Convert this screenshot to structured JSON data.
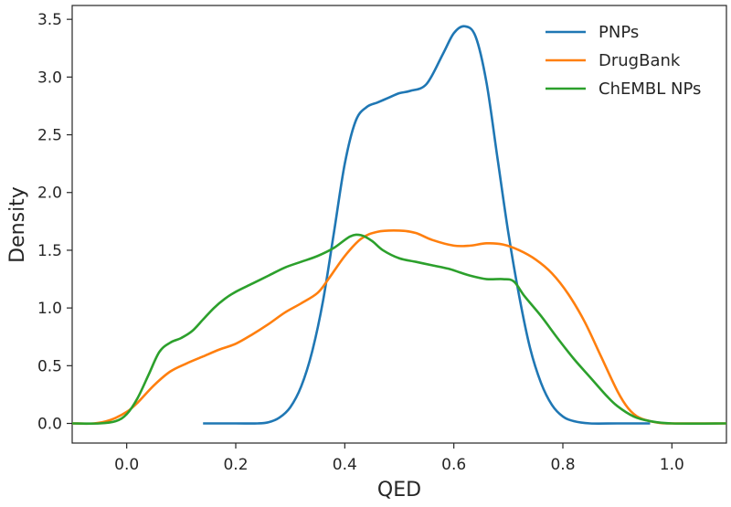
{
  "chart_data": {
    "type": "line",
    "xlabel": "QED",
    "ylabel": "Density",
    "xlim": [
      -0.1,
      1.1
    ],
    "ylim": [
      -0.17,
      3.62
    ],
    "xticks": [
      "0.0",
      "0.2",
      "0.4",
      "0.6",
      "0.8",
      "1.0"
    ],
    "xtick_values": [
      0.0,
      0.2,
      0.4,
      0.6,
      0.8,
      1.0
    ],
    "yticks": [
      "0.0",
      "0.5",
      "1.0",
      "1.5",
      "2.0",
      "2.5",
      "3.0",
      "3.5"
    ],
    "ytick_values": [
      0.0,
      0.5,
      1.0,
      1.5,
      2.0,
      2.5,
      3.0,
      3.5
    ],
    "grid": false,
    "legend_position": "top-right",
    "series": [
      {
        "name": "PNPs",
        "color": "#1f77b4",
        "points": [
          [
            0.14,
            0.0
          ],
          [
            0.2,
            0.0
          ],
          [
            0.24,
            0.0
          ],
          [
            0.26,
            0.01
          ],
          [
            0.28,
            0.05
          ],
          [
            0.3,
            0.14
          ],
          [
            0.32,
            0.32
          ],
          [
            0.34,
            0.62
          ],
          [
            0.36,
            1.06
          ],
          [
            0.38,
            1.65
          ],
          [
            0.4,
            2.25
          ],
          [
            0.42,
            2.62
          ],
          [
            0.44,
            2.74
          ],
          [
            0.46,
            2.78
          ],
          [
            0.48,
            2.82
          ],
          [
            0.5,
            2.86
          ],
          [
            0.52,
            2.88
          ],
          [
            0.55,
            2.94
          ],
          [
            0.58,
            3.2
          ],
          [
            0.6,
            3.38
          ],
          [
            0.62,
            3.44
          ],
          [
            0.64,
            3.35
          ],
          [
            0.66,
            2.95
          ],
          [
            0.68,
            2.3
          ],
          [
            0.7,
            1.65
          ],
          [
            0.72,
            1.1
          ],
          [
            0.74,
            0.65
          ],
          [
            0.76,
            0.35
          ],
          [
            0.78,
            0.16
          ],
          [
            0.8,
            0.06
          ],
          [
            0.82,
            0.02
          ],
          [
            0.85,
            0.0
          ],
          [
            0.9,
            0.0
          ],
          [
            0.96,
            0.0
          ]
        ]
      },
      {
        "name": "DrugBank",
        "color": "#ff7f0e",
        "points": [
          [
            -0.1,
            0.0
          ],
          [
            -0.06,
            0.0
          ],
          [
            -0.03,
            0.03
          ],
          [
            0.0,
            0.1
          ],
          [
            0.02,
            0.18
          ],
          [
            0.05,
            0.33
          ],
          [
            0.08,
            0.45
          ],
          [
            0.11,
            0.52
          ],
          [
            0.14,
            0.58
          ],
          [
            0.17,
            0.64
          ],
          [
            0.2,
            0.69
          ],
          [
            0.23,
            0.77
          ],
          [
            0.26,
            0.86
          ],
          [
            0.29,
            0.96
          ],
          [
            0.32,
            1.04
          ],
          [
            0.35,
            1.13
          ],
          [
            0.37,
            1.25
          ],
          [
            0.4,
            1.45
          ],
          [
            0.43,
            1.6
          ],
          [
            0.46,
            1.66
          ],
          [
            0.5,
            1.67
          ],
          [
            0.53,
            1.65
          ],
          [
            0.56,
            1.59
          ],
          [
            0.6,
            1.54
          ],
          [
            0.63,
            1.54
          ],
          [
            0.66,
            1.56
          ],
          [
            0.69,
            1.55
          ],
          [
            0.72,
            1.5
          ],
          [
            0.75,
            1.42
          ],
          [
            0.78,
            1.3
          ],
          [
            0.81,
            1.12
          ],
          [
            0.84,
            0.88
          ],
          [
            0.87,
            0.58
          ],
          [
            0.9,
            0.28
          ],
          [
            0.92,
            0.13
          ],
          [
            0.94,
            0.05
          ],
          [
            0.97,
            0.01
          ],
          [
            1.0,
            0.0
          ],
          [
            1.1,
            0.0
          ]
        ]
      },
      {
        "name": "ChEMBL NPs",
        "color": "#2ca02c",
        "points": [
          [
            -0.1,
            0.0
          ],
          [
            -0.05,
            0.0
          ],
          [
            -0.02,
            0.02
          ],
          [
            0.0,
            0.08
          ],
          [
            0.02,
            0.22
          ],
          [
            0.04,
            0.42
          ],
          [
            0.06,
            0.62
          ],
          [
            0.08,
            0.7
          ],
          [
            0.1,
            0.74
          ],
          [
            0.12,
            0.8
          ],
          [
            0.14,
            0.9
          ],
          [
            0.16,
            1.0
          ],
          [
            0.18,
            1.08
          ],
          [
            0.2,
            1.14
          ],
          [
            0.23,
            1.21
          ],
          [
            0.26,
            1.28
          ],
          [
            0.29,
            1.35
          ],
          [
            0.32,
            1.4
          ],
          [
            0.35,
            1.45
          ],
          [
            0.38,
            1.52
          ],
          [
            0.41,
            1.62
          ],
          [
            0.43,
            1.63
          ],
          [
            0.45,
            1.58
          ],
          [
            0.47,
            1.5
          ],
          [
            0.5,
            1.43
          ],
          [
            0.53,
            1.4
          ],
          [
            0.56,
            1.37
          ],
          [
            0.59,
            1.34
          ],
          [
            0.61,
            1.31
          ],
          [
            0.63,
            1.28
          ],
          [
            0.66,
            1.25
          ],
          [
            0.69,
            1.25
          ],
          [
            0.71,
            1.23
          ],
          [
            0.73,
            1.1
          ],
          [
            0.76,
            0.93
          ],
          [
            0.79,
            0.74
          ],
          [
            0.82,
            0.56
          ],
          [
            0.85,
            0.4
          ],
          [
            0.88,
            0.24
          ],
          [
            0.9,
            0.15
          ],
          [
            0.93,
            0.06
          ],
          [
            0.96,
            0.02
          ],
          [
            1.0,
            0.0
          ],
          [
            1.1,
            0.0
          ]
        ]
      }
    ]
  }
}
